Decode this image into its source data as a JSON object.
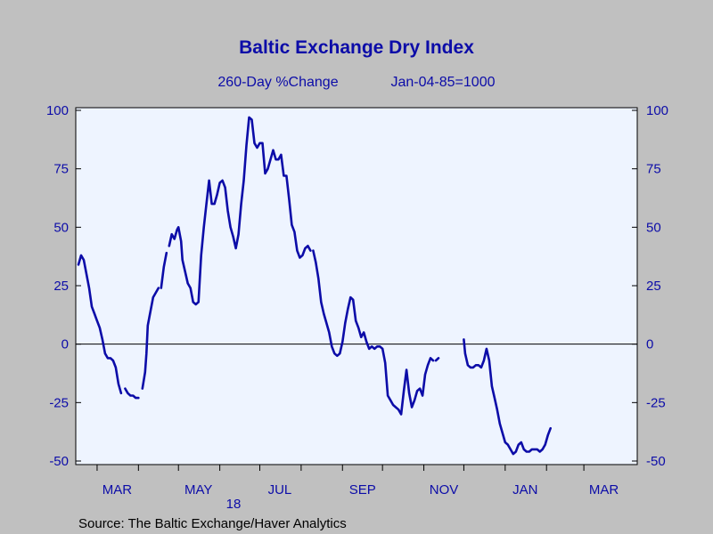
{
  "chart_data": {
    "type": "line",
    "title": "Baltic Exchange Dry Index",
    "subtitle": "260-Day %Change",
    "subtitle_note": "Jan-04-85=1000",
    "source": "Source:  The Baltic Exchange/Haver Analytics",
    "year_label": "18",
    "ylim": [
      -50,
      100
    ],
    "yticks": [
      -50,
      -25,
      0,
      25,
      50,
      75,
      100
    ],
    "x_ticks": [
      "MAR",
      "MAY",
      "JUL",
      "SEP",
      "NOV",
      "JAN",
      "MAR"
    ],
    "x_range": [
      "2018-02-15",
      "2019-03-31"
    ],
    "grid": false,
    "zero_line": true,
    "background_color": "#eef4ff",
    "line_color": "#0c0ca8",
    "series": [
      {
        "points": [
          [
            "2018-02-15",
            34
          ],
          [
            "2018-02-17",
            38
          ],
          [
            "2018-02-19",
            36
          ],
          [
            "2018-02-21",
            30
          ],
          [
            "2018-02-23",
            24
          ],
          [
            "2018-02-25",
            16
          ],
          [
            "2018-02-27",
            13
          ],
          [
            "2018-03-01",
            10
          ],
          [
            "2018-03-03",
            7
          ],
          [
            "2018-03-05",
            2
          ],
          [
            "2018-03-07",
            -4
          ],
          [
            "2018-03-09",
            -6
          ],
          [
            "2018-03-11",
            -6
          ],
          [
            "2018-03-13",
            -7
          ],
          [
            "2018-03-15",
            -10
          ],
          [
            "2018-03-17",
            -17
          ],
          [
            "2018-03-19",
            -21
          ],
          null,
          [
            "2018-03-22",
            -19
          ],
          [
            "2018-03-24",
            -21
          ],
          [
            "2018-03-26",
            -22
          ],
          [
            "2018-03-28",
            -22
          ],
          [
            "2018-03-30",
            -23
          ],
          [
            "2018-04-01",
            -23
          ],
          null,
          [
            "2018-04-04",
            -19
          ],
          [
            "2018-04-06",
            -12
          ],
          [
            "2018-04-07",
            -4
          ],
          [
            "2018-04-08",
            8
          ],
          [
            "2018-04-10",
            14
          ],
          [
            "2018-04-12",
            20
          ],
          [
            "2018-04-14",
            22
          ],
          [
            "2018-04-16",
            24
          ],
          null,
          [
            "2018-04-18",
            24
          ],
          [
            "2018-04-20",
            33
          ],
          [
            "2018-04-22",
            39
          ],
          null,
          [
            "2018-04-24",
            42
          ],
          [
            "2018-04-26",
            47
          ],
          [
            "2018-04-28",
            45
          ],
          [
            "2018-04-30",
            49
          ],
          [
            "2018-05-01",
            50
          ],
          [
            "2018-05-02",
            47
          ],
          [
            "2018-05-03",
            44
          ],
          [
            "2018-05-04",
            36
          ],
          [
            "2018-05-06",
            31
          ],
          [
            "2018-05-08",
            26
          ],
          [
            "2018-05-10",
            24
          ],
          [
            "2018-05-12",
            18
          ],
          [
            "2018-05-14",
            17
          ],
          [
            "2018-05-16",
            18
          ],
          [
            "2018-05-18",
            38
          ],
          [
            "2018-05-20",
            50
          ],
          [
            "2018-05-22",
            60
          ],
          [
            "2018-05-24",
            70
          ],
          [
            "2018-05-26",
            60
          ],
          [
            "2018-05-28",
            60
          ],
          [
            "2018-05-30",
            64
          ],
          [
            "2018-06-01",
            69
          ],
          [
            "2018-06-03",
            70
          ],
          [
            "2018-06-05",
            67
          ],
          [
            "2018-06-07",
            57
          ],
          [
            "2018-06-09",
            50
          ],
          [
            "2018-06-11",
            46
          ],
          [
            "2018-06-13",
            41
          ],
          [
            "2018-06-15",
            47
          ],
          [
            "2018-06-17",
            60
          ],
          [
            "2018-06-19",
            70
          ],
          [
            "2018-06-21",
            85
          ],
          [
            "2018-06-23",
            97
          ],
          [
            "2018-06-25",
            96
          ],
          [
            "2018-06-27",
            86
          ],
          [
            "2018-06-29",
            84
          ],
          [
            "2018-07-01",
            86
          ],
          [
            "2018-07-03",
            86
          ],
          [
            "2018-07-05",
            73
          ],
          [
            "2018-07-07",
            75
          ],
          [
            "2018-07-09",
            79
          ],
          [
            "2018-07-11",
            83
          ],
          [
            "2018-07-13",
            79
          ],
          [
            "2018-07-15",
            79
          ],
          [
            "2018-07-17",
            81
          ],
          [
            "2018-07-19",
            72
          ],
          [
            "2018-07-21",
            72
          ],
          [
            "2018-07-23",
            62
          ],
          [
            "2018-07-25",
            51
          ],
          [
            "2018-07-27",
            48
          ],
          [
            "2018-07-29",
            40
          ],
          [
            "2018-07-31",
            37
          ],
          [
            "2018-08-02",
            38
          ],
          [
            "2018-08-04",
            41
          ],
          [
            "2018-08-06",
            42
          ],
          [
            "2018-08-08",
            40
          ],
          null,
          [
            "2018-08-10",
            40
          ],
          [
            "2018-08-12",
            35
          ],
          [
            "2018-08-14",
            28
          ],
          [
            "2018-08-16",
            18
          ],
          [
            "2018-08-18",
            13
          ],
          [
            "2018-08-20",
            9
          ],
          [
            "2018-08-22",
            5
          ],
          [
            "2018-08-24",
            -1
          ],
          [
            "2018-08-26",
            -4
          ],
          [
            "2018-08-28",
            -5
          ],
          [
            "2018-08-30",
            -4
          ],
          [
            "2018-09-01",
            1
          ],
          [
            "2018-09-03",
            9
          ],
          [
            "2018-09-05",
            15
          ],
          [
            "2018-09-07",
            20
          ],
          [
            "2018-09-09",
            19
          ],
          [
            "2018-09-11",
            10
          ],
          [
            "2018-09-13",
            7
          ],
          [
            "2018-09-15",
            3
          ],
          [
            "2018-09-17",
            5
          ],
          [
            "2018-09-19",
            1
          ],
          [
            "2018-09-21",
            -2
          ],
          [
            "2018-09-23",
            -1
          ],
          [
            "2018-09-25",
            -2
          ],
          [
            "2018-09-27",
            -1
          ],
          [
            "2018-09-29",
            -1
          ],
          [
            "2018-10-01",
            -2
          ],
          [
            "2018-10-03",
            -8
          ],
          [
            "2018-10-05",
            -22
          ],
          [
            "2018-10-07",
            -24
          ],
          [
            "2018-10-09",
            -26
          ],
          [
            "2018-10-11",
            -27
          ],
          [
            "2018-10-13",
            -28
          ],
          [
            "2018-10-15",
            -30
          ],
          [
            "2018-10-17",
            -20
          ],
          [
            "2018-10-19",
            -11
          ],
          [
            "2018-10-21",
            -21
          ],
          [
            "2018-10-23",
            -27
          ],
          [
            "2018-10-25",
            -24
          ],
          [
            "2018-10-27",
            -20
          ],
          [
            "2018-10-29",
            -19
          ],
          [
            "2018-10-31",
            -22
          ],
          [
            "2018-11-02",
            -13
          ],
          [
            "2018-11-04",
            -9
          ],
          [
            "2018-11-06",
            -6
          ],
          [
            "2018-11-08",
            -7
          ],
          null,
          [
            "2018-11-10",
            -7
          ],
          [
            "2018-11-12",
            -6
          ],
          null,
          [
            "2018-12-01",
            2
          ],
          [
            "2018-12-02",
            -4
          ],
          [
            "2018-12-04",
            -9
          ],
          [
            "2018-12-06",
            -10
          ],
          [
            "2018-12-08",
            -10
          ],
          [
            "2018-12-10",
            -9
          ],
          [
            "2018-12-12",
            -9
          ],
          [
            "2018-12-14",
            -10
          ],
          [
            "2018-12-16",
            -7
          ],
          [
            "2018-12-18",
            -2
          ],
          [
            "2018-12-20",
            -7
          ],
          [
            "2018-12-22",
            -18
          ],
          [
            "2018-12-24",
            -23
          ],
          [
            "2018-12-26",
            -28
          ],
          [
            "2018-12-28",
            -34
          ],
          [
            "2018-12-30",
            -38
          ],
          [
            "2019-01-01",
            -42
          ],
          [
            "2019-01-03",
            -43
          ],
          [
            "2019-01-05",
            -45
          ],
          [
            "2019-01-07",
            -47
          ],
          [
            "2019-01-09",
            -46
          ],
          [
            "2019-01-11",
            -43
          ],
          [
            "2019-01-13",
            -42
          ],
          [
            "2019-01-15",
            -45
          ],
          [
            "2019-01-17",
            -46
          ],
          [
            "2019-01-19",
            -46
          ],
          [
            "2019-01-21",
            -45
          ],
          [
            "2019-01-23",
            -45
          ],
          [
            "2019-01-25",
            -45
          ],
          [
            "2019-01-27",
            -46
          ],
          [
            "2019-01-29",
            -45
          ],
          [
            "2019-01-31",
            -43
          ],
          [
            "2019-02-02",
            -39
          ],
          [
            "2019-02-04",
            -36
          ]
        ]
      }
    ]
  }
}
